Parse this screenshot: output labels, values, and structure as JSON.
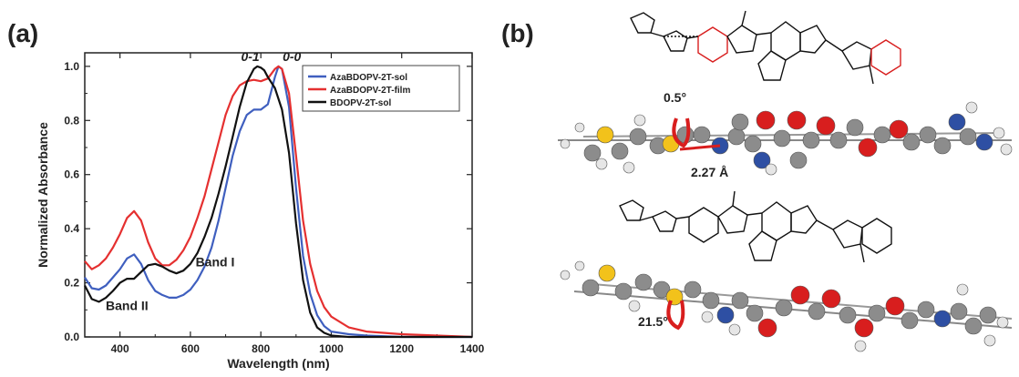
{
  "panels": {
    "a_label": "(a)",
    "b_label": "(b)"
  },
  "chart_data": {
    "type": "line",
    "xlabel": "Wavelength (nm)",
    "ylabel": "Normalized Absorbance",
    "xlim": [
      300,
      1400
    ],
    "ylim": [
      0.0,
      1.05
    ],
    "x_ticks": [
      400,
      600,
      800,
      1000,
      1200,
      1400
    ],
    "y_ticks": [
      "0.0",
      "0.2",
      "0.4",
      "0.6",
      "0.8",
      "1.0"
    ],
    "grid": false,
    "legend_position": "top-right",
    "series": [
      {
        "name": "AzaBDOPV-2T-sol",
        "color": "#3f5fbf",
        "x": [
          300,
          320,
          340,
          360,
          380,
          400,
          420,
          440,
          460,
          480,
          500,
          520,
          540,
          560,
          580,
          600,
          620,
          640,
          660,
          680,
          700,
          720,
          740,
          760,
          780,
          800,
          820,
          840,
          850,
          860,
          880,
          900,
          920,
          940,
          960,
          980,
          1000,
          1050,
          1100,
          1200,
          1300,
          1400
        ],
        "y": [
          0.22,
          0.18,
          0.175,
          0.19,
          0.22,
          0.25,
          0.29,
          0.305,
          0.27,
          0.21,
          0.17,
          0.155,
          0.145,
          0.145,
          0.155,
          0.175,
          0.21,
          0.26,
          0.33,
          0.43,
          0.55,
          0.67,
          0.76,
          0.82,
          0.84,
          0.84,
          0.86,
          0.96,
          1.0,
          0.99,
          0.85,
          0.55,
          0.3,
          0.16,
          0.08,
          0.04,
          0.02,
          0.01,
          0.005,
          0.0,
          0.0,
          0.0
        ]
      },
      {
        "name": "AzaBDOPV-2T-film",
        "color": "#e53030",
        "x": [
          300,
          320,
          340,
          360,
          380,
          400,
          420,
          440,
          460,
          480,
          500,
          520,
          540,
          560,
          580,
          600,
          620,
          640,
          660,
          680,
          700,
          720,
          740,
          760,
          780,
          800,
          820,
          840,
          850,
          860,
          880,
          900,
          920,
          940,
          960,
          980,
          1000,
          1050,
          1100,
          1200,
          1300,
          1400
        ],
        "y": [
          0.28,
          0.25,
          0.265,
          0.29,
          0.33,
          0.38,
          0.44,
          0.465,
          0.43,
          0.35,
          0.29,
          0.265,
          0.265,
          0.285,
          0.32,
          0.37,
          0.44,
          0.52,
          0.62,
          0.72,
          0.82,
          0.89,
          0.93,
          0.945,
          0.95,
          0.945,
          0.955,
          0.99,
          1.0,
          0.99,
          0.9,
          0.67,
          0.43,
          0.27,
          0.17,
          0.11,
          0.075,
          0.035,
          0.02,
          0.01,
          0.005,
          0.0
        ]
      },
      {
        "name": "BDOPV-2T-sol",
        "color": "#111111",
        "x": [
          300,
          320,
          340,
          360,
          380,
          400,
          420,
          440,
          460,
          480,
          500,
          520,
          540,
          560,
          580,
          600,
          620,
          640,
          660,
          680,
          700,
          720,
          740,
          760,
          780,
          790,
          800,
          810,
          820,
          840,
          860,
          880,
          900,
          920,
          940,
          960,
          980,
          1000,
          1050,
          1100,
          1200,
          1300,
          1400
        ],
        "y": [
          0.19,
          0.14,
          0.13,
          0.145,
          0.17,
          0.2,
          0.215,
          0.215,
          0.24,
          0.265,
          0.27,
          0.26,
          0.245,
          0.235,
          0.245,
          0.27,
          0.31,
          0.37,
          0.44,
          0.53,
          0.63,
          0.74,
          0.85,
          0.94,
          0.99,
          1.0,
          0.995,
          0.985,
          0.96,
          0.92,
          0.84,
          0.68,
          0.42,
          0.21,
          0.09,
          0.035,
          0.015,
          0.005,
          0.0,
          0.0,
          0.0,
          0.0,
          0.0
        ]
      }
    ],
    "annotations": [
      {
        "text": "0-1",
        "x": 770,
        "y": 1.02
      },
      {
        "text": "0-0",
        "x": 888,
        "y": 1.02
      },
      {
        "text": "Band I",
        "x": 670,
        "y": 0.26
      },
      {
        "text": "Band II",
        "x": 420,
        "y": 0.1
      }
    ]
  },
  "molecule_panel": {
    "labels": [
      {
        "text": "0.5°"
      },
      {
        "text": "2.27 Å"
      },
      {
        "text": "21.5°"
      }
    ],
    "atom_colors": {
      "carbon": "#8c8c8c",
      "hydrogen": "#e6e6e6",
      "sulfur": "#f2c21b",
      "nitrogen": "#2e4fa3",
      "oxygen": "#d81e1e",
      "highlight": "#d81e1e"
    }
  }
}
